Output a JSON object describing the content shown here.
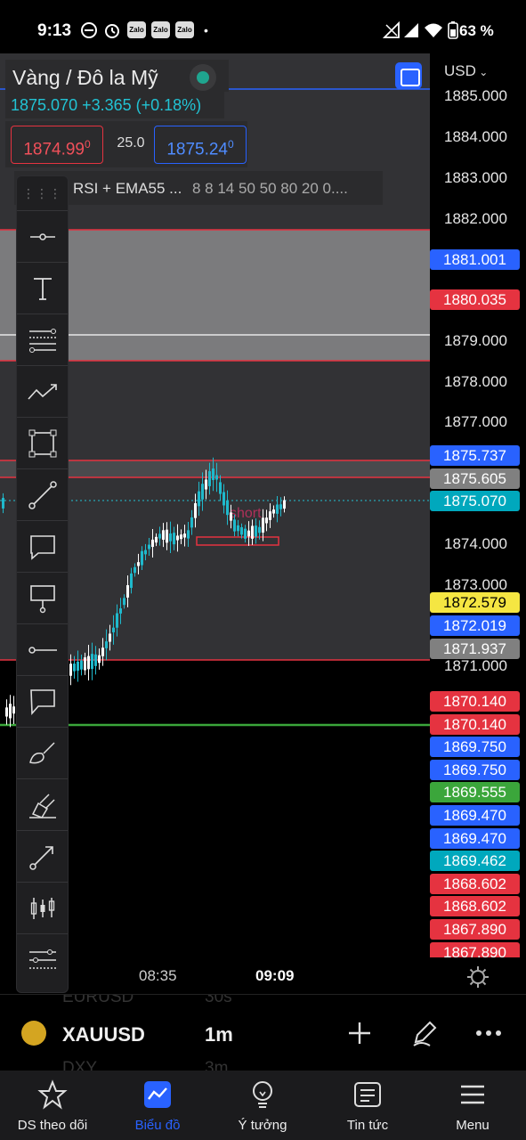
{
  "status_bar": {
    "time": "9:13",
    "battery": "63 %",
    "zalo": [
      "Zalo",
      "Zalo",
      "Zalo"
    ]
  },
  "header": {
    "symbol_title": "Vàng / Đô la Mỹ",
    "currency": "USD",
    "quote": "1875.070  +3.365 (+0.18%)",
    "sell_price": "1874.99",
    "sell_price_sup": "0",
    "spread": "25.0",
    "buy_price": "1875.24",
    "buy_price_sup": "0",
    "indicator_name": "RSI + EMA55 ...",
    "indicator_params": "8 8 14 50 50 80 20 0...."
  },
  "price_axis": {
    "ticks": [
      "1885.000",
      "1884.000",
      "1883.000",
      "1882.000",
      "1879.000",
      "1878.000",
      "1877.000",
      "1874.000",
      "1873.000",
      "1871.000"
    ],
    "labels": [
      {
        "text": "1881.001",
        "color": "#2962ff"
      },
      {
        "text": "1880.035",
        "color": "#e53340"
      },
      {
        "text": "1875.737",
        "color": "#2962ff"
      },
      {
        "text": "1875.605",
        "color": "#808080"
      },
      {
        "text": "1875.070",
        "color": "#00a8bd"
      },
      {
        "text": "1872.579",
        "color": "#f5e642"
      },
      {
        "text": "1872.019",
        "color": "#2962ff"
      },
      {
        "text": "1871.937",
        "color": "#808080"
      },
      {
        "text": "1870.140",
        "color": "#e53340"
      },
      {
        "text": "1870.140",
        "color": "#e53340"
      },
      {
        "text": "1869.750",
        "color": "#2962ff"
      },
      {
        "text": "1869.750",
        "color": "#2962ff"
      },
      {
        "text": "1869.555",
        "color": "#3ba63b"
      },
      {
        "text": "1869.470",
        "color": "#2962ff"
      },
      {
        "text": "1869.470",
        "color": "#2962ff"
      },
      {
        "text": "1869.462",
        "color": "#00a8bd"
      },
      {
        "text": "1868.602",
        "color": "#e53340"
      },
      {
        "text": "1868.602",
        "color": "#e53340"
      },
      {
        "text": "1867.890",
        "color": "#e53340"
      },
      {
        "text": "1867.890",
        "color": "#e53340"
      }
    ]
  },
  "chart_annotation": "short",
  "time_axis": {
    "t1": "08:35",
    "t2": "09:09"
  },
  "toolbar": {
    "tools": [
      "cross-line-icon",
      "text-icon",
      "fib-icon",
      "path-icon",
      "rectangle-icon",
      "trendline-icon",
      "callout-icon",
      "price-label-icon",
      "horizontal-ray-icon",
      "note-icon",
      "brush-icon",
      "highlighter-icon",
      "arrow-icon",
      "bar-pattern-icon",
      "object-tree-icon"
    ]
  },
  "symbol_row": {
    "ghost_above_symbol": "EURUSD",
    "ghost_above_interval": "30s",
    "symbol": "XAUUSD",
    "interval": "1m",
    "ghost_below_symbol": "DXY",
    "ghost_below_interval": "3m"
  },
  "nav": [
    {
      "label": "DS theo dõi",
      "icon": "star-icon"
    },
    {
      "label": "Biểu đồ",
      "icon": "chart-icon"
    },
    {
      "label": "Ý tưởng",
      "icon": "bulb-icon"
    },
    {
      "label": "Tin tức",
      "icon": "news-icon"
    },
    {
      "label": "Menu",
      "icon": "menu-icon"
    }
  ]
}
